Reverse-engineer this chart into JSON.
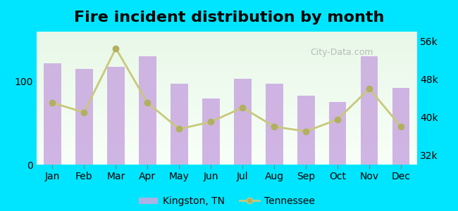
{
  "title": "Fire incident distribution by month",
  "months": [
    "Jan",
    "Feb",
    "Mar",
    "Apr",
    "May",
    "Jun",
    "Jul",
    "Aug",
    "Sep",
    "Oct",
    "Nov",
    "Dec"
  ],
  "kingston_values": [
    122,
    115,
    118,
    130,
    97,
    80,
    103,
    97,
    83,
    75,
    130,
    92
  ],
  "tennessee_values": [
    43000,
    41000,
    54500,
    43000,
    37500,
    39000,
    42000,
    38000,
    37000,
    39500,
    46000,
    38000
  ],
  "bar_color": "#c9a8e0",
  "line_color": "#c8c87a",
  "line_marker_color": "#b0b060",
  "background_color_top": "#e8f5e8",
  "background_color_bottom": "#f0f8f0",
  "outer_background": "#00e5ff",
  "left_ylim": [
    0,
    160
  ],
  "right_ylim": [
    30000,
    58000
  ],
  "left_yticks": [
    0,
    100
  ],
  "right_yticks": [
    32000,
    40000,
    48000,
    56000
  ],
  "right_yticklabels": [
    "32k",
    "40k",
    "48k",
    "56k"
  ],
  "legend_kingston": "Kingston, TN",
  "legend_tennessee": "Tennessee",
  "watermark": "City-Data.com",
  "title_fontsize": 16,
  "tick_fontsize": 10
}
